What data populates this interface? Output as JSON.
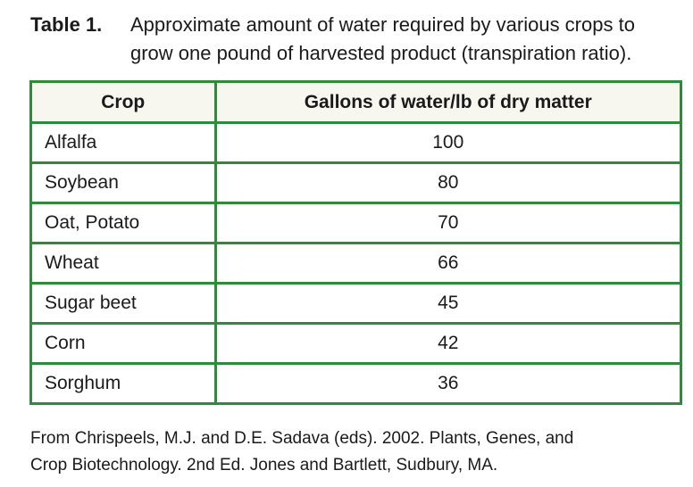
{
  "caption": {
    "label": "Table 1.",
    "line1": "Approximate amount of water required by various crops to",
    "line2": "grow one pound of harvested product (transpiration ratio)."
  },
  "table": {
    "headers": [
      "Crop",
      "Gallons of water/lb of dry matter"
    ],
    "rows": [
      {
        "crop": "Alfalfa",
        "value": "100"
      },
      {
        "crop": "Soybean",
        "value": "80"
      },
      {
        "crop": "Oat, Potato",
        "value": "70"
      },
      {
        "crop": "Wheat",
        "value": "66"
      },
      {
        "crop": "Sugar beet",
        "value": "45"
      },
      {
        "crop": "Corn",
        "value": "42"
      },
      {
        "crop": "Sorghum",
        "value": "36"
      }
    ]
  },
  "source": {
    "line1": "From Chrispeels, M.J. and D.E. Sadava (eds). 2002. Plants, Genes, and",
    "line2": "Crop Biotechnology. 2nd Ed. Jones and Bartlett, Sudbury, MA."
  },
  "colors": {
    "border": "#2e8b3c",
    "header_bg": "#f7f7ef",
    "text": "#1a1a1a"
  }
}
